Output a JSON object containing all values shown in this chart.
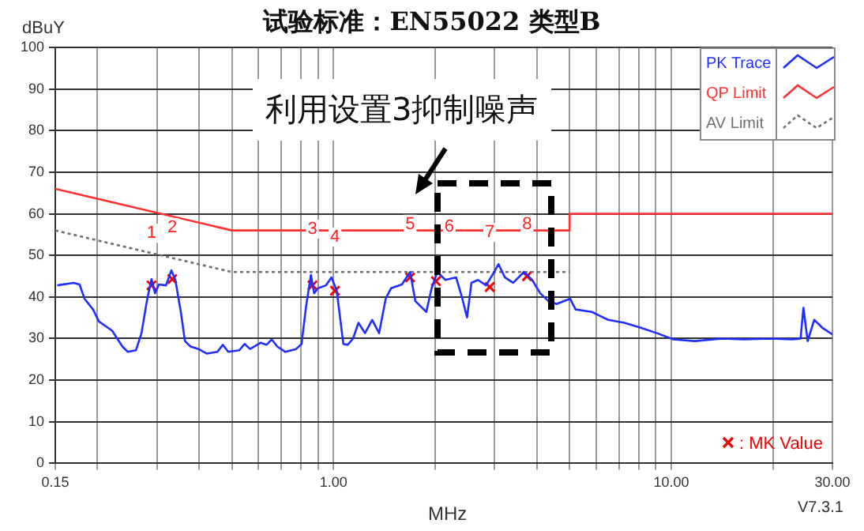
{
  "chart_data": {
    "type": "line",
    "title": "试验标准：EN55022 类型B",
    "xlabel": "MHz",
    "ylabel": "dBuY",
    "annotations": [
      "利用设置3抑制噪声",
      "V7.3.1",
      {
        "text": "1",
        "x": 0.289,
        "y": 55.3
      },
      {
        "text": "2",
        "x": 0.333,
        "y": 56.7
      },
      {
        "text": "3",
        "x": 0.866,
        "y": 56.3
      },
      {
        "text": "4",
        "x": 1.01,
        "y": 54.4
      },
      {
        "text": "5",
        "x": 1.685,
        "y": 57.5
      },
      {
        "text": "6",
        "x": 2.2,
        "y": 56.8
      },
      {
        "text": "7",
        "x": 2.9,
        "y": 55.5
      },
      {
        "text": "8",
        "x": 3.74,
        "y": 57.5
      }
    ],
    "log": "x",
    "xlim": [
      0.15,
      30
    ],
    "xticks": [
      {
        "value": 0.15,
        "label": "0.15"
      },
      {
        "value": 0.2,
        "label": null
      },
      {
        "value": 0.3,
        "label": null
      },
      {
        "value": 0.4,
        "label": null
      },
      {
        "value": 0.5,
        "label": null
      },
      {
        "value": 0.6,
        "label": null
      },
      {
        "value": 0.7,
        "label": null
      },
      {
        "value": 0.8,
        "label": null
      },
      {
        "value": 0.9,
        "label": null
      },
      {
        "value": 1,
        "label": "1.00"
      },
      {
        "value": 2,
        "label": null
      },
      {
        "value": 3,
        "label": null
      },
      {
        "value": 4,
        "label": null
      },
      {
        "value": 5,
        "label": null
      },
      {
        "value": 6,
        "label": null
      },
      {
        "value": 7,
        "label": null
      },
      {
        "value": 8,
        "label": null
      },
      {
        "value": 9,
        "label": null
      },
      {
        "value": 10,
        "label": "10.00"
      },
      {
        "value": 20,
        "label": null
      },
      {
        "value": 30,
        "label": "30.00"
      }
    ],
    "ylim": [
      0,
      100
    ],
    "yticks": [
      0,
      10,
      20,
      30,
      40,
      50,
      60,
      70,
      80,
      90,
      100
    ],
    "grid": true,
    "legend": "top right",
    "marker": "none",
    "series": [
      {
        "name": "PK Trace",
        "color": "#1f2fff",
        "line_style": "solid",
        "x": [
          0.152,
          0.17,
          0.177,
          0.183,
          0.194,
          0.202,
          0.221,
          0.237,
          0.246,
          0.26,
          0.27,
          0.28,
          0.289,
          0.296,
          0.304,
          0.319,
          0.331,
          0.34,
          0.353,
          0.363,
          0.377,
          0.398,
          0.421,
          0.453,
          0.47,
          0.488,
          0.526,
          0.545,
          0.566,
          0.609,
          0.633,
          0.656,
          0.681,
          0.72,
          0.775,
          0.804,
          0.829,
          0.857,
          0.876,
          0.899,
          0.95,
          0.986,
          1.022,
          1.069,
          1.101,
          1.142,
          1.185,
          1.239,
          1.301,
          1.364,
          1.427,
          1.48,
          1.594,
          1.685,
          1.747,
          1.882,
          1.952,
          2.028,
          2.144,
          2.306,
          2.395,
          2.485,
          2.56,
          2.676,
          2.829,
          2.99,
          3.078,
          3.218,
          3.401,
          3.664,
          3.873,
          4.093,
          4.327,
          4.574,
          5.014,
          5.208,
          5.82,
          6.501,
          7.264,
          8.118,
          9.07,
          10.13,
          11.75,
          14.14,
          16.39,
          19.72,
          22.86,
          24.15,
          24.62,
          25.34,
          26.49,
          28.01,
          30
        ],
        "values": [
          42.8,
          43.4,
          43,
          39.6,
          37,
          34.1,
          31.9,
          28.1,
          26.8,
          27.2,
          31.3,
          39,
          44.3,
          40.9,
          43,
          42.8,
          46.4,
          44.1,
          36.4,
          29.4,
          28.1,
          27.5,
          26.4,
          26.8,
          28.5,
          26.8,
          27.2,
          28.7,
          27.5,
          29,
          28.5,
          29.8,
          28.1,
          26.8,
          27.5,
          28.7,
          37.7,
          45.3,
          40.9,
          42.1,
          42.8,
          44.7,
          41.5,
          28.7,
          28.5,
          30,
          33.8,
          31.3,
          34.5,
          31.3,
          39.6,
          42.1,
          43,
          46,
          39,
          36.4,
          42.1,
          46,
          44.1,
          44.7,
          40.2,
          35.1,
          43.4,
          44.1,
          42.8,
          46,
          47.9,
          44.7,
          43.4,
          46,
          44.1,
          40.9,
          39,
          38.3,
          39.6,
          37,
          36.4,
          34.5,
          33.8,
          32.6,
          31.3,
          29.8,
          29.4,
          30,
          29.8,
          30,
          29.8,
          30,
          37.4,
          29.4,
          34.5,
          32.6,
          31
        ]
      },
      {
        "name": "QP Limit",
        "color": "#ff3030",
        "line_style": "solid",
        "x": [
          0.15,
          0.5,
          5,
          5,
          30
        ],
        "values": [
          66,
          56,
          56,
          60,
          60
        ]
      },
      {
        "name": "AV Limit",
        "color": "#707070",
        "line_style": "dotted",
        "x": [
          0.15,
          0.5,
          5
        ],
        "values": [
          56,
          46,
          46
        ]
      },
      {
        "name": ": MK Value",
        "type": "scatter",
        "marker": "cross",
        "color": "#f00000",
        "x": [
          0.289,
          0.333,
          0.866,
          1.01,
          1.685,
          2.01,
          2.9,
          3.74
        ],
        "values": [
          42.8,
          44.3,
          42.8,
          41.5,
          44.7,
          43.8,
          42.4,
          45
        ]
      }
    ]
  }
}
